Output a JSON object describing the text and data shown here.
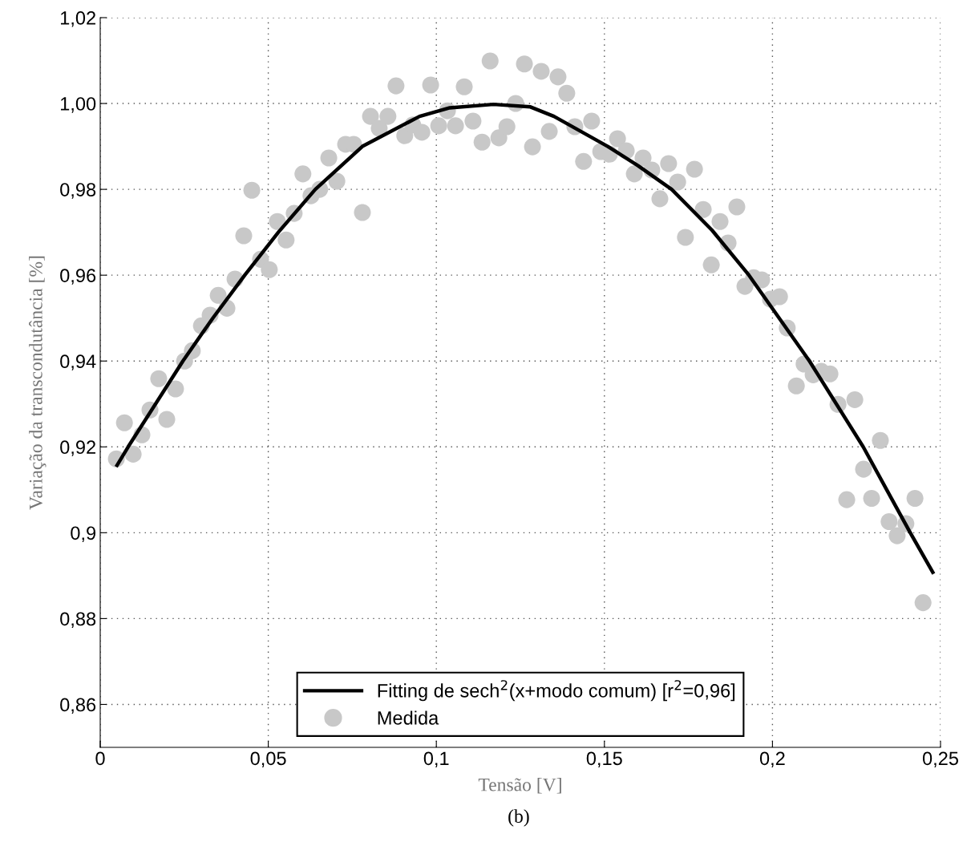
{
  "chart_data": {
    "type": "scatter",
    "xlabel": "Tensão [V]",
    "ylabel": "Variação da transcondutância [%]",
    "annotations": [
      "(b)"
    ],
    "xlim": [
      0,
      0.25
    ],
    "ylim": [
      0.85,
      1.02
    ],
    "xticks": [
      0,
      {
        "value": 0.05,
        "label": "0,05"
      },
      {
        "value": 0.1,
        "label": "0,1"
      },
      {
        "value": 0.15,
        "label": "0,15"
      },
      {
        "value": 0.2,
        "label": "0,2"
      },
      {
        "value": 0.25,
        "label": "0,25"
      }
    ],
    "yticks": [
      {
        "value": 0.86,
        "label": "0,86"
      },
      {
        "value": 0.88,
        "label": "0,88"
      },
      {
        "value": 0.9,
        "label": "0,9"
      },
      {
        "value": 0.92,
        "label": "0,92"
      },
      {
        "value": 0.94,
        "label": "0,94"
      },
      {
        "value": 0.96,
        "label": "0,96"
      },
      {
        "value": 0.98,
        "label": "0,98"
      },
      {
        "value": 1.0,
        "label": "1,00"
      },
      {
        "value": 1.02,
        "label": "1,02"
      }
    ],
    "grid": true,
    "legend": "bottom",
    "series": [
      {
        "name": "Fitting de sech$^{2}$(x+modo comum) [r$^{2}$=0,96]",
        "type": "line",
        "color": "#000000",
        "marker": "none",
        "line_style": "solid",
        "x": [
          0.005,
          0.0083,
          0.0246,
          0.0335,
          0.043,
          0.053,
          0.064,
          0.078,
          0.095,
          0.104,
          0.117,
          0.128,
          0.135,
          0.151,
          0.16,
          0.17,
          0.182,
          0.193,
          0.202,
          0.211,
          0.219,
          0.227,
          0.234,
          0.241,
          0.2477
        ],
        "values": [
          0.9157,
          0.92,
          0.94,
          0.95,
          0.96,
          0.97,
          0.98,
          0.99,
          0.997,
          0.999,
          0.9998,
          0.9992,
          0.997,
          0.99,
          0.9855,
          0.98,
          0.9705,
          0.96,
          0.95,
          0.94,
          0.93,
          0.92,
          0.91,
          0.9,
          0.8908
        ]
      },
      {
        "name": "Medida",
        "type": "scatter",
        "color": "#c8c8c8",
        "marker": "circle",
        "x": [
          0.0048,
          0.0072,
          0.0098,
          0.0124,
          0.0148,
          0.0174,
          0.0198,
          0.0224,
          0.0251,
          0.0274,
          0.0301,
          0.0327,
          0.0351,
          0.0377,
          0.0401,
          0.0427,
          0.0451,
          0.0477,
          0.0503,
          0.0527,
          0.0553,
          0.0577,
          0.0603,
          0.0627,
          0.0653,
          0.068,
          0.0704,
          0.073,
          0.0754,
          0.078,
          0.0804,
          0.083,
          0.0856,
          0.088,
          0.0906,
          0.093,
          0.0957,
          0.0983,
          0.1007,
          0.1033,
          0.1057,
          0.1083,
          0.1109,
          0.1136,
          0.116,
          0.1186,
          0.121,
          0.1236,
          0.1262,
          0.1286,
          0.1312,
          0.1336,
          0.1362,
          0.1388,
          0.1412,
          0.1438,
          0.1462,
          0.1489,
          0.1515,
          0.1539,
          0.1565,
          0.1589,
          0.1615,
          0.1641,
          0.1665,
          0.1691,
          0.1718,
          0.1741,
          0.1768,
          0.1794,
          0.1818,
          0.1844,
          0.1868,
          0.1894,
          0.1918,
          0.1944,
          0.1968,
          0.1994,
          0.2021,
          0.2044,
          0.2071,
          0.2094,
          0.2121,
          0.2145,
          0.2171,
          0.2195,
          0.2221,
          0.2245,
          0.2271,
          0.2295,
          0.2321,
          0.2347,
          0.2371,
          0.2397,
          0.2424,
          0.2448
        ],
        "values": [
          0.9172,
          0.9256,
          0.9183,
          0.9228,
          0.9286,
          0.9359,
          0.9264,
          0.9335,
          0.94,
          0.9424,
          0.9482,
          0.9507,
          0.9553,
          0.9523,
          0.9591,
          0.9692,
          0.9798,
          0.9637,
          0.9613,
          0.9725,
          0.9682,
          0.9744,
          0.9836,
          0.9785,
          0.98,
          0.9873,
          0.9819,
          0.9905,
          0.9905,
          0.9746,
          0.997,
          0.9942,
          0.997,
          1.0041,
          0.9925,
          0.995,
          0.9933,
          1.0043,
          0.9948,
          0.9983,
          0.9948,
          1.0039,
          0.9959,
          0.991,
          1.0099,
          0.992,
          0.9946,
          1.0,
          1.0092,
          0.9899,
          1.0075,
          0.9935,
          1.0062,
          1.0024,
          0.9946,
          0.9865,
          0.9959,
          0.9888,
          0.9882,
          0.9918,
          0.989,
          0.9836,
          0.9873,
          0.9845,
          0.9778,
          0.986,
          0.9817,
          0.9688,
          0.9847,
          0.9753,
          0.9624,
          0.9725,
          0.9675,
          0.9759,
          0.9574,
          0.9594,
          0.9589,
          0.9544,
          0.955,
          0.9477,
          0.9342,
          0.9393,
          0.9368,
          0.9376,
          0.937,
          0.9299,
          0.9077,
          0.931,
          0.9148,
          0.908,
          0.9215,
          0.9026,
          0.8993,
          0.9021,
          0.908,
          0.8837
        ]
      }
    ]
  }
}
